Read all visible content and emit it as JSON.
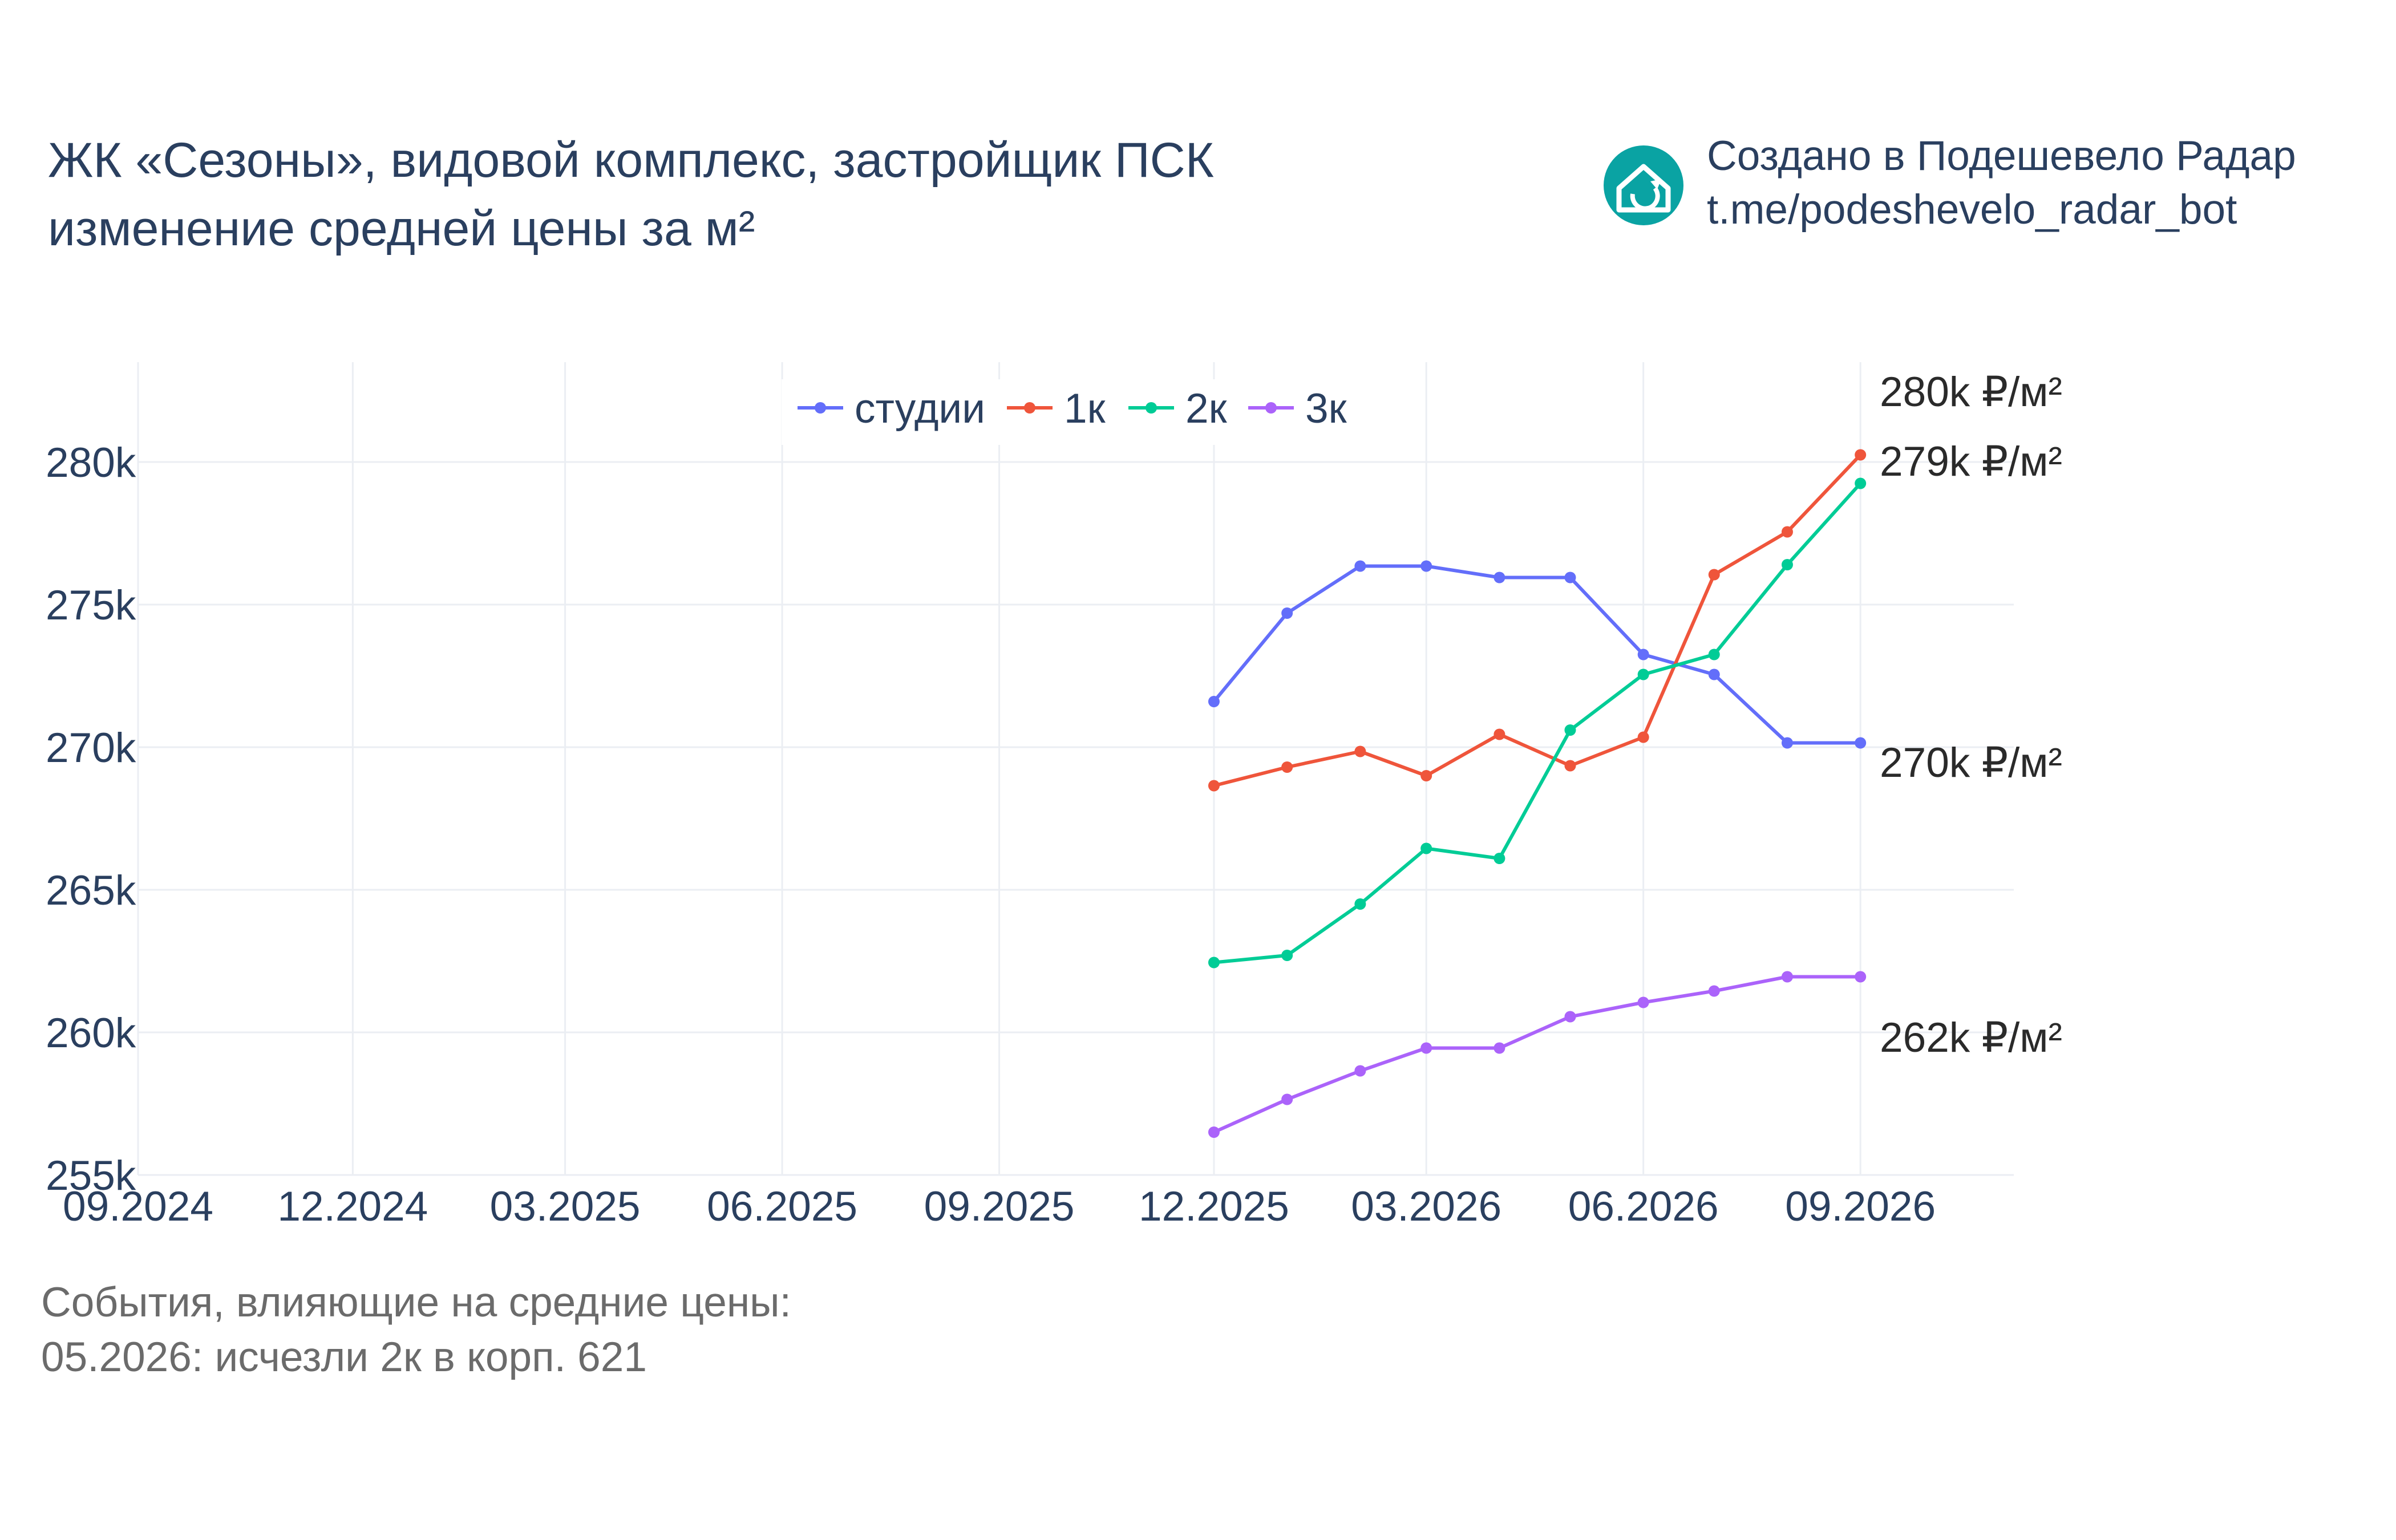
{
  "title": {
    "line1": "ЖК «Сезоны», видовой комплекс, застройщик ПСК",
    "line2": "изменение средней цены за м²"
  },
  "credit": {
    "line1": "Создано в Подешевело Радар",
    "line2": "t.me/podeshevelo_radar_bot",
    "logo_icon": "house-refresh-icon",
    "logo_color": "#0aa3a3"
  },
  "notes": {
    "heading": "События, влияющие на средние цены:",
    "items": [
      "05.2026: исчезли 2к в корп. 621"
    ]
  },
  "end_labels": [
    "280k ₽/м²",
    "279k ₽/м²",
    "270k ₽/м²",
    "262k ₽/м²"
  ],
  "chart_data": {
    "type": "line",
    "title": "ЖК «Сезоны», видовой комплекс, застройщик ПСК изменение средней цены за м²",
    "xlabel": "",
    "ylabel": "",
    "x_ticks": [
      "09.2024",
      "12.2024",
      "03.2025",
      "06.2025",
      "09.2025",
      "12.2025",
      "03.2026",
      "06.2026",
      "09.2026"
    ],
    "y_ticks": [
      "255k",
      "260k",
      "265k",
      "270k",
      "275k",
      "280k"
    ],
    "ylim": [
      255000,
      283500
    ],
    "xlim": [
      "2024-09-01",
      "2026-11-05"
    ],
    "grid": true,
    "legend": "top-center",
    "x": [
      "2025-12-01",
      "2026-01-01",
      "2026-02-01",
      "2026-03-01",
      "2026-04-01",
      "2026-05-01",
      "2026-06-01",
      "2026-07-01",
      "2026-08-01",
      "2026-09-01"
    ],
    "series": [
      {
        "name": "студии",
        "color": "#636efa",
        "values": [
          271600,
          274700,
          276350,
          276350,
          275950,
          275950,
          273250,
          272550,
          270150,
          270150
        ]
      },
      {
        "name": "1к",
        "color": "#ef553b",
        "values": [
          268650,
          269300,
          269850,
          269000,
          270450,
          269350,
          270350,
          276050,
          277550,
          280250
        ]
      },
      {
        "name": "2к",
        "color": "#00cc96",
        "values": [
          262450,
          262700,
          264500,
          266450,
          266100,
          270600,
          272550,
          273250,
          276400,
          279250
        ]
      },
      {
        "name": "3к",
        "color": "#ab63fa",
        "values": [
          256500,
          257650,
          258650,
          259450,
          259450,
          260550,
          261050,
          261450,
          261950,
          261950
        ]
      }
    ]
  }
}
